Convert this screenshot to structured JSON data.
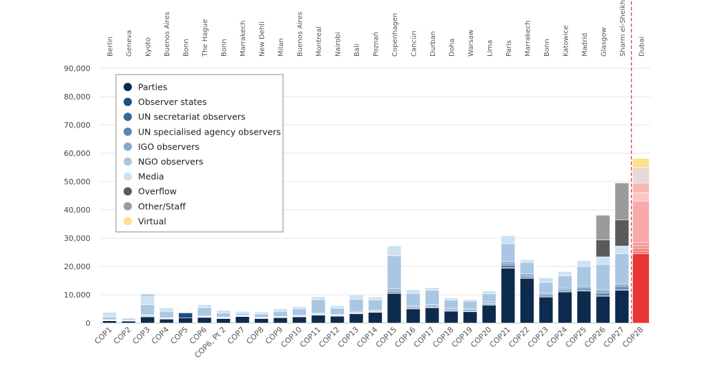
{
  "chart_data": {
    "type": "bar",
    "stacked": true,
    "ylim": [
      0,
      90000
    ],
    "yticks": [
      0,
      10000,
      20000,
      30000,
      40000,
      50000,
      60000,
      70000,
      80000,
      90000
    ],
    "ytick_labels": [
      "0",
      "10,000",
      "20,000",
      "30,000",
      "40,000",
      "50,000",
      "60,000",
      "70,000",
      "80,000",
      "90,000"
    ],
    "grid": true,
    "legend_position": "top-left",
    "categories": [
      "COP1",
      "COP2",
      "COP3",
      "COP4",
      "COP5",
      "COP6",
      "COP6, Pt 2",
      "COP7",
      "COP8",
      "COP9",
      "COP10",
      "COP11",
      "COP12",
      "COP13",
      "COP14",
      "COP15",
      "COP16",
      "COP17",
      "COP18",
      "COP19",
      "COP20",
      "COP21",
      "COP22",
      "COP23",
      "COP24",
      "COP25",
      "COP26",
      "COP27",
      "COP28"
    ],
    "cities": [
      "Berlin",
      "Geneva",
      "Kyoto",
      "Buenos Aires",
      "Bonn",
      "The Hague",
      "Bonn",
      "Marrakech",
      "New Dehli",
      "Milan",
      "Buenos Aires",
      "Montreal",
      "Nairobi",
      "Bali",
      "Poznań",
      "Copenhagen",
      "Cancún",
      "Durban",
      "Doha",
      "Warsaw",
      "Lima",
      "Paris",
      "Marrakech",
      "Bonn",
      "Katowice",
      "Madrid",
      "Glasgow",
      "Sharm el-Sheikh",
      "Dubai"
    ],
    "highlight_category": "COP28",
    "series": [
      {
        "name": "Parties",
        "color": "#0d2b4e",
        "values": [
          800,
          700,
          2200,
          1400,
          1800,
          2000,
          1600,
          2300,
          1600,
          1900,
          2200,
          2800,
          2400,
          3300,
          3800,
          10500,
          5000,
          5400,
          4200,
          4000,
          6300,
          19400,
          15800,
          9200,
          11000,
          11300,
          9500,
          11600,
          24500
        ]
      },
      {
        "name": "Observer states",
        "color": "#1d4e7e",
        "values": [
          100,
          100,
          200,
          100,
          1800,
          100,
          100,
          100,
          100,
          100,
          100,
          100,
          100,
          100,
          100,
          200,
          100,
          100,
          100,
          100,
          100,
          300,
          200,
          100,
          100,
          200,
          200,
          200,
          800
        ]
      },
      {
        "name": "UN secretariat observers",
        "color": "#3a6896",
        "values": [
          100,
          100,
          200,
          100,
          100,
          100,
          100,
          100,
          100,
          100,
          100,
          200,
          200,
          200,
          200,
          400,
          300,
          300,
          300,
          300,
          300,
          600,
          400,
          400,
          400,
          500,
          600,
          600,
          1000
        ]
      },
      {
        "name": "UN specialised agency observers",
        "color": "#5c86b2",
        "values": [
          100,
          100,
          200,
          100,
          100,
          100,
          100,
          100,
          100,
          100,
          100,
          200,
          200,
          200,
          200,
          400,
          300,
          300,
          300,
          300,
          300,
          600,
          400,
          400,
          400,
          500,
          600,
          600,
          1000
        ]
      },
      {
        "name": "IGO observers",
        "color": "#86a8cb",
        "values": [
          100,
          100,
          300,
          200,
          100,
          200,
          200,
          100,
          100,
          100,
          200,
          200,
          200,
          300,
          300,
          600,
          400,
          400,
          400,
          400,
          400,
          800,
          600,
          500,
          500,
          600,
          800,
          800,
          1200
        ]
      },
      {
        "name": "NGO observers",
        "color": "#a9c7e3",
        "values": [
          1000,
          500,
          3400,
          2200,
          200,
          3000,
          1500,
          700,
          1200,
          1800,
          2300,
          4800,
          2100,
          4300,
          3500,
          11700,
          4400,
          5100,
          2800,
          2700,
          2900,
          6300,
          4000,
          3800,
          4300,
          6900,
          9000,
          10700,
          14600
        ]
      },
      {
        "name": "Media",
        "color": "#cde3f4",
        "values": [
          1600,
          300,
          3300,
          1100,
          100,
          1000,
          900,
          700,
          700,
          900,
          800,
          1000,
          900,
          1600,
          1100,
          3500,
          1300,
          900,
          800,
          500,
          1000,
          2900,
          1000,
          1600,
          1500,
          2100,
          2700,
          2700,
          2900
        ]
      },
      {
        "name": "Overflow",
        "color": "#5a5a5a",
        "values": [
          0,
          0,
          300,
          200,
          0,
          0,
          0,
          0,
          0,
          0,
          0,
          0,
          0,
          0,
          0,
          0,
          0,
          0,
          0,
          0,
          0,
          0,
          0,
          0,
          0,
          0,
          6000,
          9300,
          3500
        ]
      },
      {
        "name": "Other/Staff",
        "color": "#9b9b9b",
        "values": [
          0,
          0,
          200,
          100,
          0,
          0,
          0,
          0,
          0,
          0,
          0,
          0,
          0,
          0,
          0,
          0,
          0,
          0,
          0,
          0,
          0,
          0,
          0,
          0,
          0,
          0,
          8700,
          13000,
          5500
        ]
      },
      {
        "name": "Virtual",
        "color": "#fce38a",
        "values": [
          0,
          0,
          0,
          0,
          0,
          0,
          0,
          0,
          0,
          0,
          0,
          0,
          0,
          0,
          0,
          0,
          0,
          0,
          0,
          0,
          0,
          0,
          0,
          0,
          0,
          0,
          0,
          0,
          3200
        ]
      }
    ],
    "highlight_colors": [
      "#ea3536",
      "#f06f6f",
      "#f28080",
      "#f59292",
      "#f69b9b",
      "#f8aaaa",
      "#fbc6c6",
      "#f7b8b8",
      "#e8d9d9",
      "#fce38a"
    ]
  }
}
